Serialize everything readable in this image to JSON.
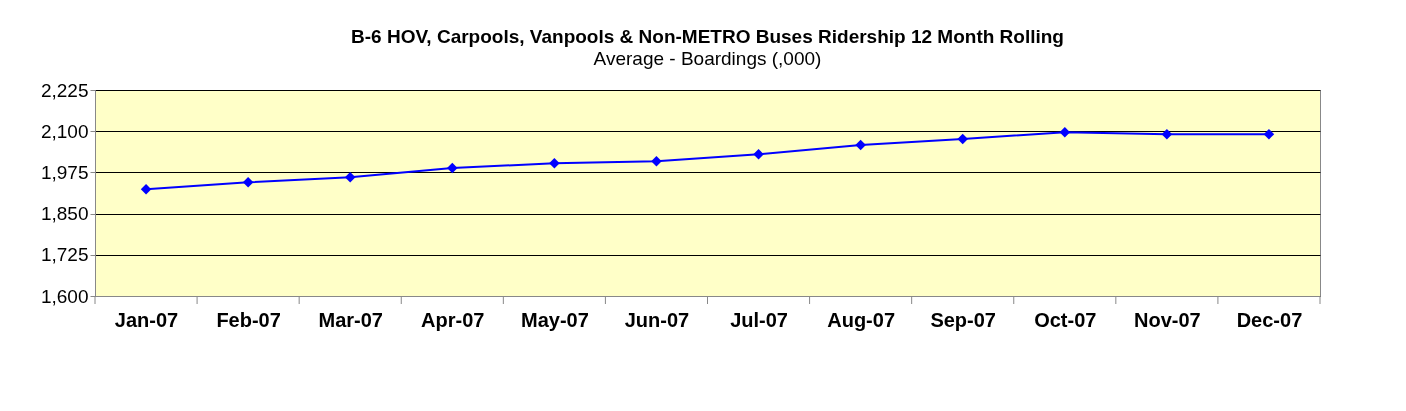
{
  "chart_data": {
    "type": "line",
    "title": "B-6 HOV, Carpools, Vanpools & Non-METRO Buses Ridership 12 Month Rolling",
    "subtitle": "Average - Boardings (,000)",
    "categories": [
      "Jan-07",
      "Feb-07",
      "Mar-07",
      "Apr-07",
      "May-07",
      "Jun-07",
      "Jul-07",
      "Aug-07",
      "Sep-07",
      "Oct-07",
      "Nov-07",
      "Dec-07"
    ],
    "series": [
      {
        "color": "#0000ff",
        "values": [
          1924,
          1945,
          1960,
          1988,
          2003,
          2009,
          2030,
          2058,
          2076,
          2097,
          2091,
          2091
        ]
      }
    ],
    "ylim": [
      1600,
      2225
    ],
    "yticks": [
      {
        "value": 1600,
        "label": "1,600"
      },
      {
        "value": 1725,
        "label": "1,725"
      },
      {
        "value": 1850,
        "label": "1,850"
      },
      {
        "value": 1975,
        "label": "1,975"
      },
      {
        "value": 2100,
        "label": "2,100"
      },
      {
        "value": 2225,
        "label": "2,225"
      }
    ],
    "grid": "y",
    "marker": "diamond",
    "line_style": "solid"
  }
}
